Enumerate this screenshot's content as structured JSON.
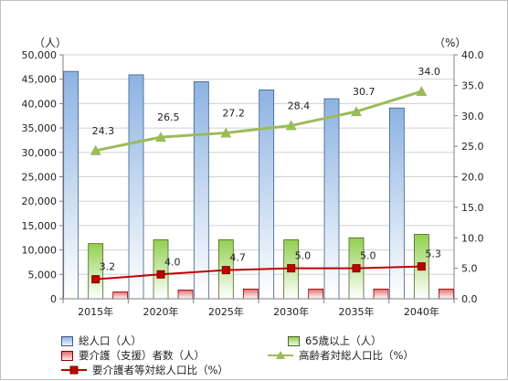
{
  "chart_data": {
    "type": "bar",
    "categories": [
      "2015年",
      "2020年",
      "2025年",
      "2030年",
      "2035年",
      "2040年"
    ],
    "y_left": {
      "unit": "（人）",
      "min": 0,
      "max": 50000,
      "step": 5000,
      "ticks": [
        "0",
        "5,000",
        "10,000",
        "15,000",
        "20,000",
        "25,000",
        "30,000",
        "35,000",
        "40,000",
        "45,000",
        "50,000"
      ]
    },
    "y_right": {
      "unit": "（%）",
      "min": 0,
      "max": 40,
      "step": 5,
      "ticks": [
        "0.0",
        "5.0",
        "10.0",
        "15.0",
        "20.0",
        "25.0",
        "30.0",
        "35.0",
        "40.0"
      ]
    },
    "series": [
      {
        "name": "総人口（人）",
        "type": "bar",
        "axis": "left",
        "values": [
          46600,
          45900,
          44500,
          42800,
          41000,
          39100
        ],
        "color": "#8db3e2",
        "border": "#385d8a"
      },
      {
        "name": "65歳以上（人）",
        "type": "bar",
        "axis": "left",
        "values": [
          11300,
          12100,
          12100,
          12100,
          12500,
          13200
        ],
        "color": "#92d050",
        "border": "#4f6228"
      },
      {
        "name": "要介護（支援）者数（人）",
        "type": "bar",
        "axis": "left",
        "values": [
          1400,
          1800,
          2000,
          2000,
          2000,
          2000
        ],
        "color": "#e46c70",
        "border": "#8b0000"
      },
      {
        "name": "高齢者対総人口比（%）",
        "type": "line",
        "axis": "right",
        "values": [
          24.3,
          26.5,
          27.2,
          28.4,
          30.7,
          34.0
        ],
        "labels": [
          "24.3",
          "26.5",
          "27.2",
          "28.4",
          "30.7",
          "34.0"
        ],
        "color": "#9bbb59",
        "marker": "triangle"
      },
      {
        "name": "要介護者等対総人口比（%）",
        "type": "line",
        "axis": "right",
        "values": [
          3.2,
          4.0,
          4.7,
          5.0,
          5.0,
          5.3
        ],
        "labels": [
          "3.2",
          "4.0",
          "4.7",
          "5.0",
          "5.0",
          "5.3"
        ],
        "color": "#c00000",
        "marker": "square"
      }
    ],
    "grid": true,
    "legend_position": "bottom"
  }
}
